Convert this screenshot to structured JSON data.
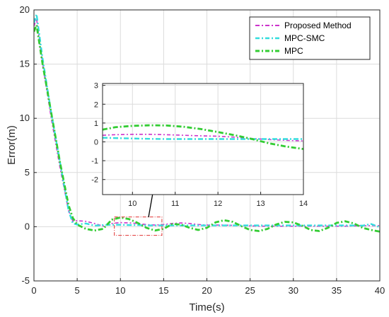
{
  "chart_data": [
    {
      "type": "line",
      "xlabel": "Time(s)",
      "ylabel": "Error(m)",
      "xlim": [
        0,
        40
      ],
      "ylim": [
        -5,
        20
      ],
      "xticks": [
        "0",
        "5",
        "10",
        "15",
        "20",
        "25",
        "30",
        "35",
        "40"
      ],
      "yticks": [
        "-5",
        "0",
        "5",
        "10",
        "15",
        "20"
      ],
      "grid": true,
      "legend_position": "top-right",
      "series": [
        {
          "name": "Proposed Method",
          "color": "#cc33cc",
          "style": "dash-dot",
          "x": [
            0,
            0.3,
            1,
            2,
            3,
            4,
            4.5,
            5,
            6,
            7,
            8,
            9,
            10,
            11,
            12,
            13,
            14,
            15,
            16,
            17,
            18,
            19,
            20,
            22,
            24,
            26,
            28,
            30,
            32,
            34,
            36,
            38,
            40
          ],
          "y": [
            18.5,
            19.2,
            15,
            10,
            5.5,
            1.5,
            0.5,
            0.55,
            0.5,
            0.3,
            0.05,
            0.3,
            0.38,
            0.35,
            0.3,
            0.2,
            0.15,
            0.2,
            0.3,
            0.35,
            0.3,
            0.2,
            0.15,
            0.15,
            0.1,
            0.05,
            0.05,
            0.05,
            0.05,
            0.05,
            0.05,
            0.1,
            0.1
          ]
        },
        {
          "name": "MPC-SMC",
          "color": "#33dddd",
          "style": "dash-dot",
          "x": [
            0,
            0.3,
            1,
            2,
            3,
            4,
            4.5,
            5,
            6,
            7,
            8,
            9,
            10,
            11,
            12,
            13,
            14,
            15,
            16,
            18,
            20,
            22,
            24,
            26,
            28,
            30,
            32,
            34,
            36,
            38,
            39,
            40
          ],
          "y": [
            18.8,
            19.6,
            15.5,
            10.5,
            6,
            1.5,
            0.3,
            0.2,
            0.3,
            0.1,
            0.15,
            0.18,
            0.18,
            0.15,
            0.15,
            0.12,
            0.12,
            0.12,
            0.12,
            0.12,
            0.12,
            0.12,
            0.12,
            0.12,
            0.12,
            0.12,
            0.12,
            0.12,
            0.12,
            0.1,
            0.25,
            -0.05
          ]
        },
        {
          "name": "MPC",
          "color": "#33cc33",
          "style": "dash-dot",
          "x": [
            0,
            0.3,
            1,
            2,
            3,
            4,
            4.5,
            5,
            6,
            7,
            8,
            9,
            10,
            11,
            12,
            13,
            14,
            15,
            16,
            17,
            18,
            19,
            20,
            21,
            22,
            23,
            24,
            25,
            26,
            27,
            28,
            29,
            30,
            31,
            32,
            33,
            34,
            35,
            36,
            37,
            38,
            39,
            40
          ],
          "y": [
            18.0,
            18.6,
            15,
            10.5,
            6,
            2,
            0.8,
            0.2,
            -0.2,
            -0.35,
            -0.2,
            0.65,
            0.85,
            0.7,
            0.35,
            -0.1,
            -0.35,
            -0.2,
            0.25,
            0.2,
            -0.1,
            -0.3,
            -0.1,
            0.4,
            0.6,
            0.45,
            0.05,
            -0.3,
            -0.4,
            -0.2,
            0.2,
            0.45,
            0.4,
            0.1,
            -0.3,
            -0.4,
            -0.1,
            0.35,
            0.5,
            0.3,
            -0.1,
            -0.3,
            -0.45
          ]
        }
      ],
      "zoom_box": {
        "xlim": [
          9.3,
          14.8
        ],
        "ylim": [
          -0.8,
          0.9
        ]
      }
    },
    {
      "type": "line",
      "xlim": [
        9.3,
        14
      ],
      "ylim": [
        -2.8,
        3.1
      ],
      "xticks": [
        "10",
        "11",
        "12",
        "13",
        "14"
      ],
      "yticks": [
        "-2",
        "-1",
        "0",
        "1",
        "2",
        "3"
      ],
      "grid": true,
      "series": [
        {
          "color": "#cc33cc",
          "style": "dash-dot",
          "x": [
            9.3,
            9.6,
            10,
            10.4,
            10.8,
            11.2,
            11.6,
            12,
            12.4,
            12.8,
            13.2,
            13.6,
            14
          ],
          "y": [
            0.35,
            0.38,
            0.4,
            0.4,
            0.38,
            0.35,
            0.32,
            0.3,
            0.25,
            0.18,
            0.12,
            0.08,
            0.05
          ]
        },
        {
          "color": "#33dddd",
          "style": "dash-dot",
          "x": [
            9.3,
            9.6,
            10,
            10.4,
            10.8,
            11.2,
            11.6,
            12,
            12.4,
            12.8,
            13.2,
            13.6,
            14
          ],
          "y": [
            0.22,
            0.2,
            0.18,
            0.16,
            0.15,
            0.15,
            0.15,
            0.15,
            0.15,
            0.15,
            0.15,
            0.15,
            0.15
          ]
        },
        {
          "color": "#33cc33",
          "style": "dash-dot",
          "x": [
            9.3,
            9.6,
            10,
            10.4,
            10.8,
            11.2,
            11.6,
            12,
            12.4,
            12.8,
            13.2,
            13.6,
            14
          ],
          "y": [
            0.65,
            0.78,
            0.85,
            0.88,
            0.87,
            0.8,
            0.68,
            0.52,
            0.35,
            0.15,
            -0.08,
            -0.25,
            -0.38
          ]
        }
      ]
    }
  ]
}
